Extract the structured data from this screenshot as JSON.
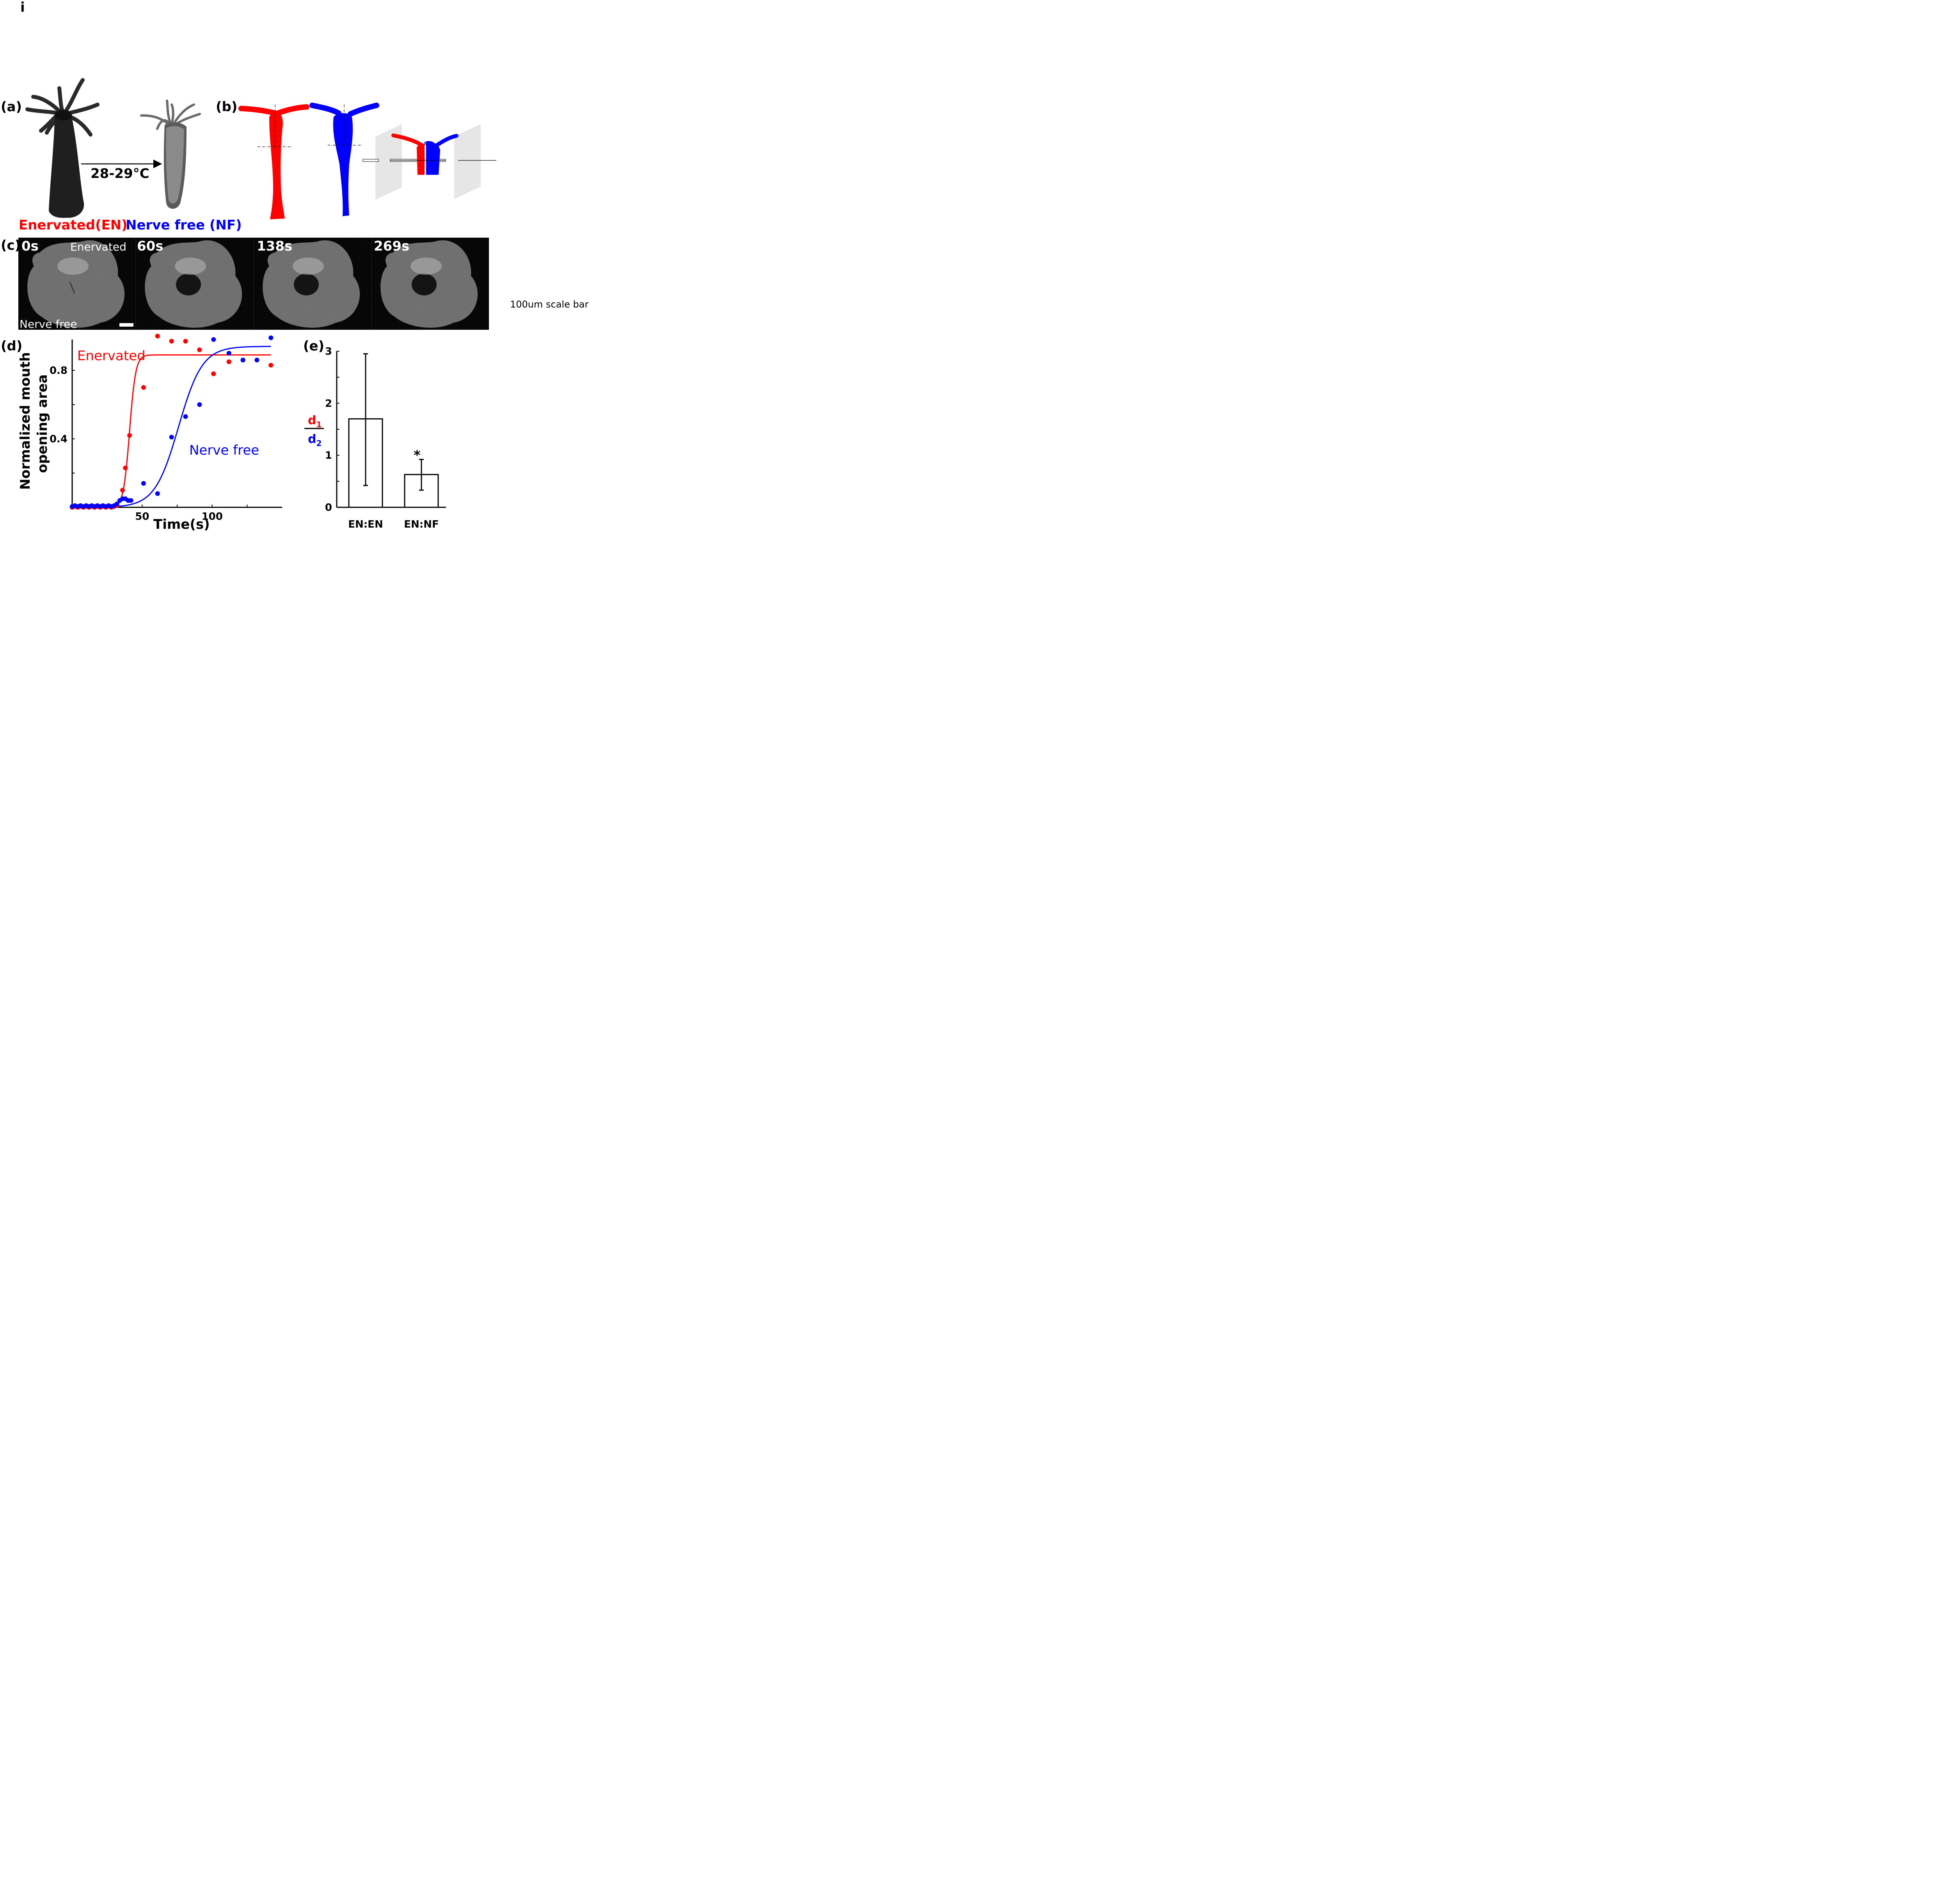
{
  "figure": {
    "corner_letter": "i",
    "panel_labels": [
      "(a)",
      "(b)",
      "(c)",
      "(d)",
      "(e)"
    ]
  },
  "panel_a": {
    "temperature": "28-29°C",
    "legend_enervated": "Enervated(EN)",
    "legend_nerve_free": "Nerve free (NF)"
  },
  "panel_c": {
    "timestamps": [
      "0s",
      "60s",
      "138s",
      "269s"
    ],
    "label_top": "Enervated",
    "label_bottom": "Nerve free",
    "scale_note": "100um scale bar"
  },
  "colors": {
    "enervated": "#ff0000",
    "nerve_free": "#0000ff"
  },
  "chart_data": [
    {
      "type": "scatter",
      "panel": "(d)",
      "xlabel": "Time(s)",
      "ylabel_line1": "Normalized mouth",
      "ylabel_line2": "opening area",
      "xlim": [
        0,
        150
      ],
      "ylim": [
        0,
        0.98
      ],
      "xticks": [
        50,
        100
      ],
      "yticks": [
        0.4,
        0.8
      ],
      "xtick_labels": [
        "50",
        "100"
      ],
      "ytick_labels": [
        "0.4",
        "0.8"
      ],
      "series": [
        {
          "name": "Enervated",
          "color": "#ff0000",
          "x": [
            0,
            2,
            4,
            6,
            8,
            10,
            12,
            14,
            16,
            18,
            20,
            22,
            24,
            26,
            28,
            30,
            32,
            36,
            38,
            41,
            51,
            61,
            71,
            81,
            91,
            101,
            112,
            122,
            132,
            142
          ],
          "y": [
            0,
            0.005,
            0,
            0.005,
            0,
            0.005,
            0,
            0.005,
            0,
            0.005,
            0,
            0.005,
            0,
            0.005,
            0,
            0.005,
            0.01,
            0.1,
            0.23,
            0.42,
            0.7,
            1.0,
            0.97,
            0.97,
            0.92,
            0.78,
            0.85,
            0.86,
            0.86,
            0.83
          ],
          "fit_plateau": 0.89,
          "fit_midpoint": 41,
          "fit_width": 2.2
        },
        {
          "name": "Nerve free",
          "color": "#0000ff",
          "x": [
            0,
            2,
            4,
            6,
            8,
            10,
            12,
            14,
            16,
            18,
            20,
            22,
            24,
            26,
            28,
            30,
            32,
            34,
            36,
            38,
            40,
            42,
            51,
            61,
            71,
            81,
            91,
            101,
            112,
            122,
            132,
            142
          ],
          "y": [
            0.005,
            0.01,
            0.005,
            0.01,
            0.005,
            0.01,
            0.005,
            0.01,
            0.005,
            0.01,
            0.005,
            0.01,
            0.005,
            0.01,
            0.005,
            0.01,
            0.02,
            0.04,
            0.05,
            0.05,
            0.04,
            0.04,
            0.14,
            0.08,
            0.41,
            0.53,
            0.6,
            0.98,
            0.9,
            0.86,
            0.86,
            0.99
          ],
          "fit_plateau": 0.94,
          "fit_midpoint": 76,
          "fit_width": 8.5
        }
      ]
    },
    {
      "type": "bar",
      "panel": "(e)",
      "categories": [
        "EN:EN",
        "EN:NF"
      ],
      "values": [
        1.7,
        0.63
      ],
      "error_low": [
        0.42,
        0.33
      ],
      "error_high": [
        2.95,
        0.92
      ],
      "ylim": [
        0,
        3
      ],
      "yticks": [
        0,
        1,
        2,
        3
      ],
      "ytick_labels": [
        "0",
        "1",
        "2",
        "3"
      ],
      "ylabel_num": "d",
      "ylabel_num_sub": "1",
      "ylabel_den": "d",
      "ylabel_den_sub": "2",
      "significance": "*"
    }
  ]
}
